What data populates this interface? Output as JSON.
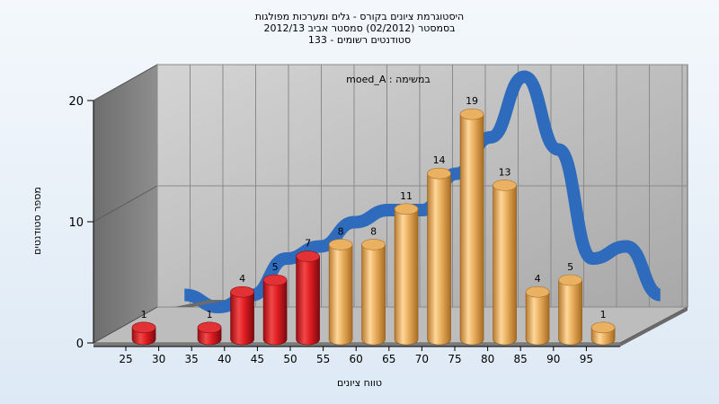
{
  "title_lines": [
    "היסטוגרמת ציונים בקורס - גלים ומערכות מפולגות",
    "בסמסטר (02/2012) סמסטר אביב 2012/13",
    "סטודנטים רשומים - 133"
  ],
  "chart_data": {
    "type": "bar",
    "subtitle": "moed_A : במשימה",
    "xlabel": "טווח ציונים",
    "ylabel": "מספר סטודנטים",
    "categories": [
      "25",
      "30",
      "35",
      "40",
      "45",
      "50",
      "55",
      "60",
      "65",
      "70",
      "75",
      "80",
      "85",
      "90",
      "95"
    ],
    "x_tick_labels": [
      "25",
      "30",
      "35",
      "40",
      "45",
      "50",
      "55",
      "60",
      "65",
      "70",
      "75",
      "80",
      "85",
      "90",
      "95"
    ],
    "values": [
      1,
      0,
      1,
      4,
      5,
      7,
      8,
      8,
      11,
      14,
      19,
      13,
      4,
      5,
      1
    ],
    "data_labels": [
      "1",
      "",
      "1",
      "4",
      "5",
      "7",
      "8",
      "8",
      "11",
      "14",
      "19",
      "13",
      "4",
      "5",
      "1"
    ],
    "y_ticks": [
      "0",
      "10",
      "20"
    ],
    "ylim": [
      0,
      20
    ],
    "bar_colors": [
      "red",
      "red",
      "red",
      "red",
      "red",
      "red",
      "orange",
      "orange",
      "orange",
      "orange",
      "orange",
      "orange",
      "orange",
      "orange",
      "orange"
    ],
    "curve_color": "#2f6bbd",
    "grid": true,
    "legend": "none"
  }
}
